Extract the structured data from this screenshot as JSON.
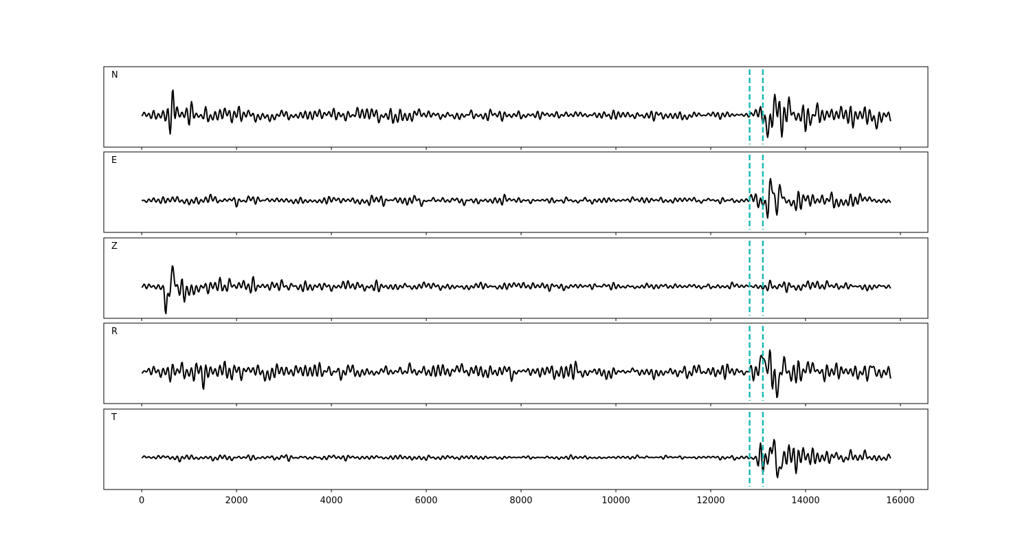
{
  "chart_data": {
    "type": "line",
    "description_of_data": "Five stacked waveform traces sharing one x axis; amplitudes are relative (no y-axis scale printed).",
    "panels": [
      {
        "label": "N",
        "color": "#000000"
      },
      {
        "label": "E",
        "color": "#000000"
      },
      {
        "label": "Z",
        "color": "#000000"
      },
      {
        "label": "R",
        "color": "#000000"
      },
      {
        "label": "T",
        "color": "#000000"
      }
    ],
    "xlim": [
      -800,
      16580
    ],
    "xticks": [
      0,
      2000,
      4000,
      6000,
      8000,
      10000,
      12000,
      14000,
      16000
    ],
    "trace_x_range": [
      0,
      15800
    ],
    "markers": {
      "x": [
        12820,
        13100
      ],
      "color": "#1ab9b9",
      "style": "dashed"
    },
    "waveforms": {
      "N": {
        "envelope": [
          [
            0,
            0.12
          ],
          [
            400,
            0.3
          ],
          [
            700,
            0.85
          ],
          [
            900,
            0.7
          ],
          [
            1500,
            0.45
          ],
          [
            3000,
            0.3
          ],
          [
            5000,
            0.32
          ],
          [
            7000,
            0.2
          ],
          [
            10000,
            0.18
          ],
          [
            12700,
            0.2
          ],
          [
            12950,
            0.55
          ],
          [
            13350,
            1.0
          ],
          [
            13700,
            0.55
          ],
          [
            14500,
            0.45
          ],
          [
            15600,
            0.45
          ]
        ],
        "peaks": [
          [
            700,
            0.85
          ],
          [
            13350,
            1.0
          ],
          [
            13200,
            -0.9
          ],
          [
            15500,
            -0.7
          ]
        ]
      },
      "E": {
        "envelope": [
          [
            0,
            0.08
          ],
          [
            400,
            0.15
          ],
          [
            800,
            0.22
          ],
          [
            1400,
            0.25
          ],
          [
            3000,
            0.15
          ],
          [
            5000,
            0.22
          ],
          [
            8000,
            0.15
          ],
          [
            12700,
            0.12
          ],
          [
            12950,
            0.35
          ],
          [
            13300,
            1.0
          ],
          [
            13600,
            0.55
          ],
          [
            14500,
            0.4
          ],
          [
            15600,
            0.2
          ]
        ],
        "peaks": [
          [
            13300,
            0.95
          ],
          [
            13350,
            -0.7
          ],
          [
            13480,
            0.45
          ]
        ]
      },
      "Z": {
        "envelope": [
          [
            0,
            0.05
          ],
          [
            450,
            0.3
          ],
          [
            500,
            1.0
          ],
          [
            650,
            0.9
          ],
          [
            1000,
            0.6
          ],
          [
            1500,
            0.45
          ],
          [
            2500,
            0.28
          ],
          [
            5000,
            0.2
          ],
          [
            9000,
            0.15
          ],
          [
            12800,
            0.12
          ],
          [
            13300,
            0.2
          ],
          [
            14500,
            0.25
          ],
          [
            15600,
            0.2
          ]
        ],
        "peaks": [
          [
            650,
            0.88
          ],
          [
            550,
            -0.95
          ]
        ]
      },
      "R": {
        "envelope": [
          [
            0,
            0.12
          ],
          [
            450,
            0.35
          ],
          [
            700,
            0.85
          ],
          [
            1000,
            0.65
          ],
          [
            1500,
            0.55
          ],
          [
            3000,
            0.35
          ],
          [
            6000,
            0.3
          ],
          [
            10000,
            0.28
          ],
          [
            12700,
            0.3
          ],
          [
            13050,
            0.75
          ],
          [
            13300,
            0.9
          ],
          [
            14000,
            0.45
          ],
          [
            15400,
            0.55
          ],
          [
            15750,
            0.5
          ]
        ],
        "peaks": [
          [
            13100,
            0.75
          ],
          [
            13400,
            -0.95
          ],
          [
            15400,
            0.6
          ]
        ]
      },
      "T": {
        "envelope": [
          [
            0,
            0.05
          ],
          [
            800,
            0.2
          ],
          [
            1500,
            0.12
          ],
          [
            5000,
            0.1
          ],
          [
            10000,
            0.08
          ],
          [
            12700,
            0.08
          ],
          [
            12950,
            0.3
          ],
          [
            13320,
            1.0
          ],
          [
            13500,
            0.8
          ],
          [
            14000,
            0.35
          ],
          [
            15600,
            0.2
          ]
        ],
        "peaks": [
          [
            13320,
            1.0
          ],
          [
            13450,
            -0.75
          ]
        ]
      }
    }
  }
}
